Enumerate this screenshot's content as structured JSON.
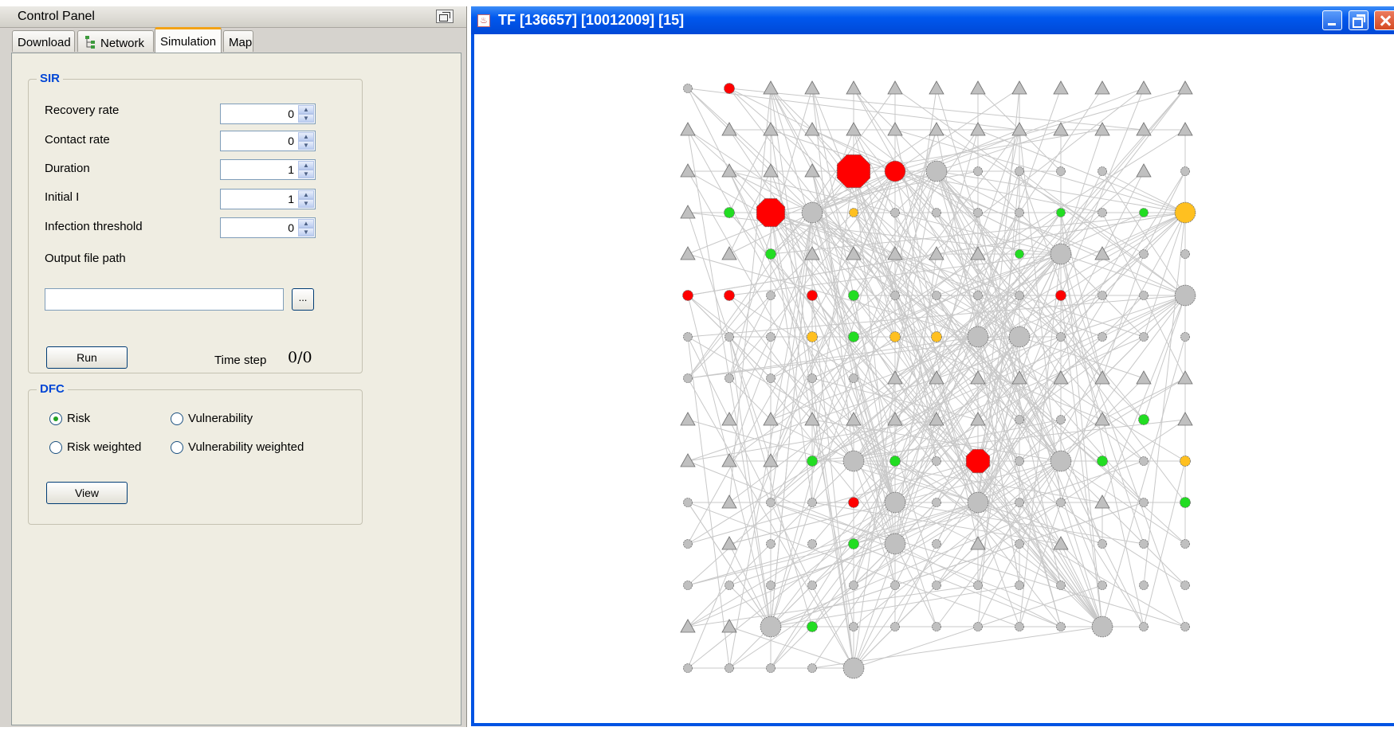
{
  "control_panel": {
    "title": "Control Panel",
    "tabs": [
      {
        "label": "Download",
        "active": false
      },
      {
        "label": "Network",
        "active": false
      },
      {
        "label": "Simulation",
        "active": true
      },
      {
        "label": "Map",
        "active": false
      }
    ],
    "sir": {
      "title": "SIR",
      "recovery_rate": {
        "label": "Recovery rate",
        "value": "0"
      },
      "contact_rate": {
        "label": "Contact rate",
        "value": "0"
      },
      "duration": {
        "label": "Duration",
        "value": "1"
      },
      "initial_i": {
        "label": "Initial I",
        "value": "1"
      },
      "infection_threshold": {
        "label": "Infection threshold",
        "value": "0"
      },
      "output_path": {
        "label": "Output file path",
        "value": "",
        "browse_label": "..."
      },
      "run_label": "Run",
      "time_step_label": "Time step",
      "time_step_value": "0/0"
    },
    "dfc": {
      "title": "DFC",
      "options": [
        {
          "label": "Risk",
          "selected": true
        },
        {
          "label": "Vulnerability",
          "selected": false
        },
        {
          "label": "Risk weighted",
          "selected": false
        },
        {
          "label": "Vulnerability weighted",
          "selected": false
        }
      ],
      "view_label": "View"
    }
  },
  "network_window": {
    "title": "TF [136657] [10012009] [15]",
    "colors": {
      "titlebar": "#0058ee",
      "node_default": "#c0c0c0",
      "infected": "#ff0000",
      "green": "#22dd22",
      "orange": "#ffc020",
      "edge": "#c8c8c8"
    },
    "node_grid": {
      "columns": 13,
      "rows": [
        "c r2 t t t t t t t t t t t",
        "t t t t t t t t t t t t t",
        "t t t t o7 r3 c3 c c c c t c",
        "t g2 o6 c3 y c c c c g c g y3",
        "t t g2 t t t t t g c3 t c c",
        "r2 r2 c r2 g2 c c c c r2 c c c3",
        "c c c y2 g2 y2 y2 c3 c3 c c c c",
        "c c c c c t t t t t t t t",
        "t t t t t t t t c c t g2 t",
        "t t t g2 c3 g2 c o5 c c3 g2 c y2",
        "c t c c r2 c3 c c3 c c t c g2",
        "c t c c g2 c3 c t c t c c c",
        "c c c c c c c c c c c c c",
        "t t c3 g2 c c c c c c c3 c c",
        "c c c c c3 - - - - - - - -"
      ]
    }
  }
}
